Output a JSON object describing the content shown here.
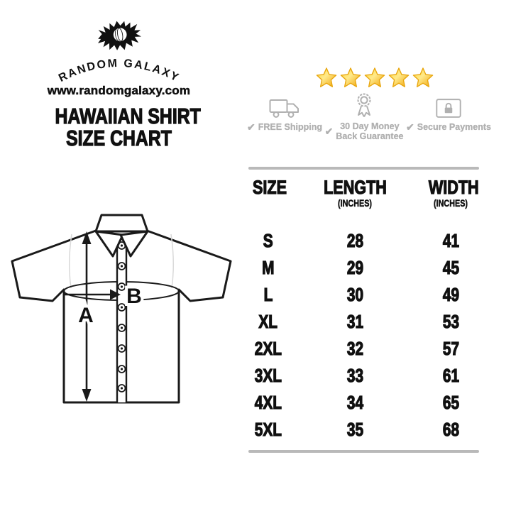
{
  "brand": {
    "name": "RANDOM GALAXY",
    "website": "www.randomgalaxy.com",
    "logo": "galaxy-eye-logo"
  },
  "title": {
    "line1": "HAWAIIAN SHIRT",
    "line2": "SIZE CHART"
  },
  "rating": {
    "stars": 5,
    "star_fill_light": "#ffe98a",
    "star_fill_top": "#ffd83d",
    "star_fill_deep": "#efa307",
    "star_edge": "#e8a50c"
  },
  "icons": {
    "check": "✔"
  },
  "badges": [
    {
      "icon": "truck-icon",
      "line1": "FREE Shipping",
      "line2": ""
    },
    {
      "icon": "ribbon-icon",
      "line1": "30 Day Money",
      "line2": "Back Guarantee"
    },
    {
      "icon": "lock-icon",
      "line1": "Secure Payments",
      "line2": ""
    }
  ],
  "diagram": {
    "label_a": "A",
    "label_b": "B"
  },
  "table_header": {
    "col1": "SIZE",
    "col2": "LENGTH",
    "col2_sub": "(INCHES)",
    "col3": "WIDTH",
    "col3_sub": "(INCHES)"
  },
  "chart_data": {
    "type": "table",
    "title": "HAWAIIAN SHIRT SIZE CHART",
    "columns": [
      "SIZE",
      "LENGTH (INCHES)",
      "WIDTH (INCHES)"
    ],
    "rows": [
      {
        "size": "S",
        "length": "28",
        "width": "41"
      },
      {
        "size": "M",
        "length": "29",
        "width": "45"
      },
      {
        "size": "L",
        "length": "30",
        "width": "49"
      },
      {
        "size": "XL",
        "length": "31",
        "width": "53"
      },
      {
        "size": "2XL",
        "length": "32",
        "width": "57"
      },
      {
        "size": "3XL",
        "length": "33",
        "width": "61"
      },
      {
        "size": "4XL",
        "length": "34",
        "width": "65"
      },
      {
        "size": "5XL",
        "length": "35",
        "width": "68"
      }
    ]
  },
  "colors": {
    "ink": "#111111",
    "badge_gray": "#b0b0b0",
    "rule_gray": "#b9b9b9"
  }
}
